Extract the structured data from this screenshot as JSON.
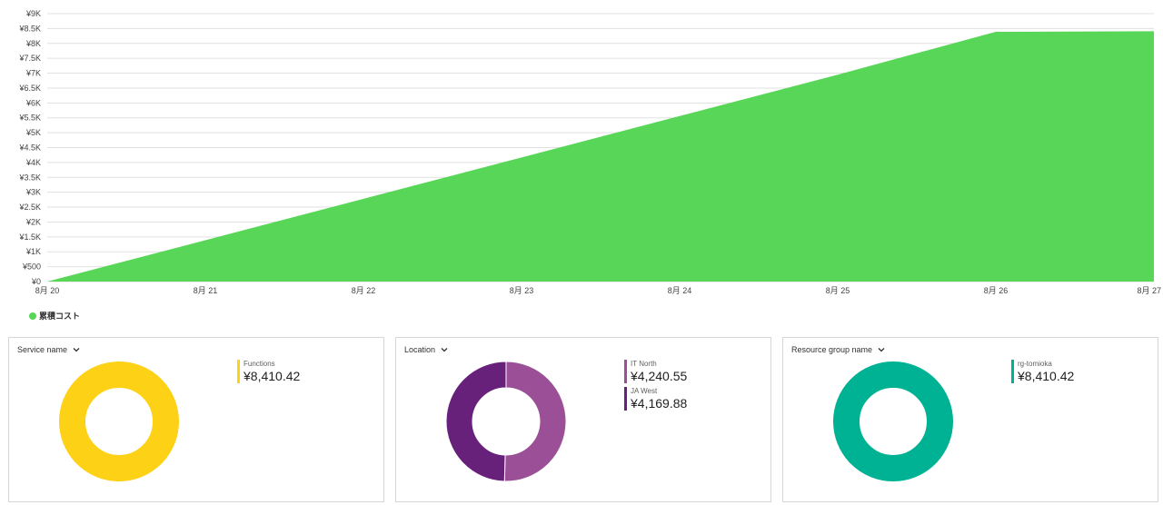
{
  "chart_data": {
    "type": "area",
    "title": "",
    "xlabel": "",
    "ylabel": "",
    "x": [
      "8月 20",
      "8月 21",
      "8月 22",
      "8月 23",
      "8月 24",
      "8月 25",
      "8月 26",
      "8月 27"
    ],
    "series": [
      {
        "name": "累積コスト",
        "color": "#57d657",
        "values": [
          0,
          1390,
          2780,
          4170,
          5560,
          6950,
          8390,
          8410
        ]
      }
    ],
    "ylim": [
      0,
      9000
    ],
    "yticks": [
      "¥0",
      "¥500",
      "¥1K",
      "¥1.5K",
      "¥2K",
      "¥2.5K",
      "¥3K",
      "¥3.5K",
      "¥4K",
      "¥4.5K",
      "¥5K",
      "¥5.5K",
      "¥6K",
      "¥6.5K",
      "¥7K",
      "¥7.5K",
      "¥8K",
      "¥8.5K",
      "¥9K"
    ],
    "grid": true,
    "legend": "bottom-left"
  },
  "legend": {
    "label": "累積コスト",
    "color": "#57d657"
  },
  "cards": [
    {
      "header": "Service name",
      "entries": [
        {
          "label": "Functions",
          "value": "¥8,410.42",
          "amount": 8410.42,
          "color": "#fcd116"
        }
      ]
    },
    {
      "header": "Location",
      "entries": [
        {
          "label": "IT North",
          "value": "¥4,240.55",
          "amount": 4240.55,
          "color": "#9b4f96"
        },
        {
          "label": "JA West",
          "value": "¥4,169.88",
          "amount": 4169.88,
          "color": "#68217a"
        }
      ]
    },
    {
      "header": "Resource group name",
      "entries": [
        {
          "label": "rg-tomioka",
          "value": "¥8,410.42",
          "amount": 8410.42,
          "color": "#00b294"
        }
      ]
    }
  ]
}
